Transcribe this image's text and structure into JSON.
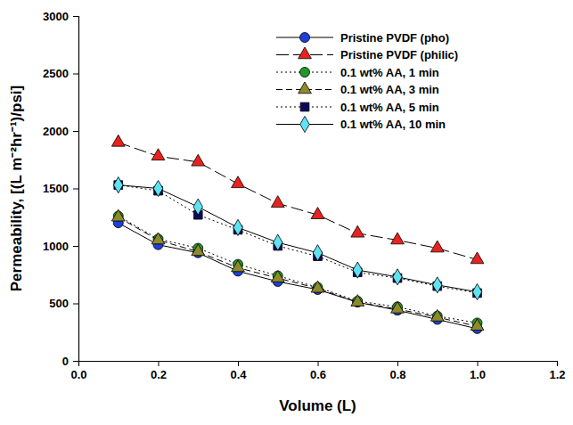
{
  "chart_data": {
    "type": "line",
    "x_label": "Volume (L)",
    "y_label": "Permeability, [(L m⁻²hr⁻¹)/psi]",
    "x": [
      0.1,
      0.2,
      0.3,
      0.4,
      0.5,
      0.6,
      0.7,
      0.8,
      0.9,
      1.0
    ],
    "series": [
      {
        "name": "Pristine PVDF (pho)",
        "color": "#1f3fd6",
        "marker": "circle",
        "line_style": "solid",
        "values": [
          1200,
          1010,
          940,
          780,
          690,
          620,
          510,
          440,
          360,
          280
        ]
      },
      {
        "name": "Pristine PVDF (philic)",
        "color": "#e8231f",
        "marker": "triangle",
        "line_style": "longdash",
        "values": [
          1900,
          1780,
          1730,
          1540,
          1370,
          1270,
          1110,
          1050,
          980,
          880
        ]
      },
      {
        "name": "0.1 wt% AA,  1 min",
        "color": "#1f9a2a",
        "marker": "circle",
        "line_style": "dotted",
        "values": [
          1260,
          1060,
          980,
          840,
          740,
          640,
          520,
          470,
          390,
          330
        ]
      },
      {
        "name": "0.1 wt% AA,  3 min",
        "color": "#8c8a2a",
        "marker": "triangle",
        "line_style": "dashed",
        "values": [
          1250,
          1050,
          950,
          810,
          720,
          630,
          510,
          450,
          380,
          300
        ]
      },
      {
        "name": "0.1 wt% AA,  5 min",
        "color": "#0a0a5a",
        "marker": "square",
        "line_style": "dotted",
        "values": [
          1530,
          1480,
          1270,
          1140,
          1000,
          910,
          770,
          720,
          650,
          590
        ]
      },
      {
        "name": "0.1 wt% AA,  10 min",
        "color": "#5fe3f2",
        "marker": "diamond",
        "line_style": "solid",
        "values": [
          1530,
          1500,
          1340,
          1160,
          1030,
          940,
          790,
          730,
          660,
          600
        ]
      }
    ],
    "xlim": [
      0,
      1.2
    ],
    "xticks": [
      {
        "value": 0,
        "label": "0.0"
      },
      0.2,
      0.4,
      0.6,
      0.8,
      {
        "value": 1.0,
        "label": "1.0"
      },
      1.2
    ],
    "ylim": [
      0,
      3000
    ],
    "yticks": [
      0,
      500,
      1000,
      1500,
      2000,
      2500,
      3000
    ],
    "grid": false,
    "legend": "upper right"
  }
}
